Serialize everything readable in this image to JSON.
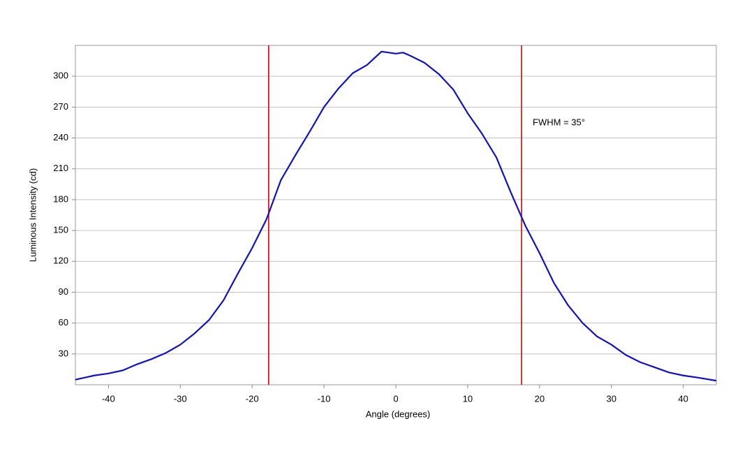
{
  "chart_data": {
    "type": "line",
    "x_label": "Angle (degrees)",
    "y_label": "Luminous Intensity (cd)",
    "annotation": "FWHM = 35°",
    "xlim": [
      -44.6,
      44.6
    ],
    "xticks": [
      -40,
      -30,
      -20,
      -10,
      0,
      10,
      20,
      30,
      40
    ],
    "ylim": [
      0,
      330
    ],
    "yticks": [
      30,
      60,
      90,
      120,
      150,
      180,
      210,
      240,
      270,
      300
    ],
    "grid": true,
    "markers": [
      -17.7,
      17.5
    ],
    "marker_color": "#e00000",
    "series": [
      {
        "color": "#1010c8",
        "x": [
          -44.6,
          -42,
          -40,
          -38,
          -36,
          -34,
          -32,
          -30,
          -28,
          -26,
          -24,
          -22,
          -20,
          -18,
          -16,
          -14,
          -12,
          -10,
          -8,
          -6,
          -4,
          -2,
          0,
          1,
          2,
          4,
          6,
          8,
          10,
          12,
          14,
          16,
          18,
          20,
          22,
          24,
          26,
          28,
          30,
          32,
          34,
          36,
          38,
          40,
          42,
          44.6
        ],
        "values": [
          5,
          9,
          11,
          14,
          20,
          25,
          31,
          39,
          50,
          63,
          82,
          108,
          133,
          161,
          199,
          223,
          246,
          270,
          288,
          303,
          311,
          324,
          322,
          323,
          320,
          313,
          302,
          287,
          264,
          244,
          221,
          187,
          155,
          128,
          99,
          77,
          60,
          47,
          39,
          29,
          22,
          17,
          12,
          9,
          7,
          4
        ]
      }
    ]
  }
}
